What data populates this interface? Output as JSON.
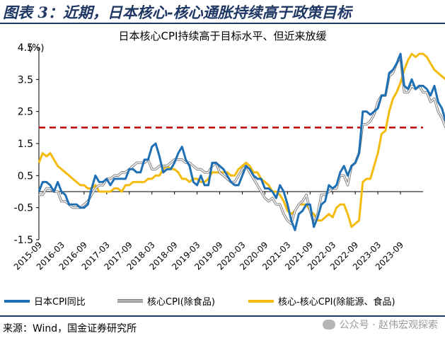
{
  "figure_title": "图表 3：近期，日本核心-核心通胀持续高于政策目标",
  "source": "来源：Wind，国金证券研究所",
  "watermark": "公众号 · 赵伟宏观探索",
  "colors": {
    "headline": "#1f6fb4",
    "core": "#b0b0b0",
    "core_core": "#f4bb0d",
    "target": "#c00000",
    "brand": "#1f3864"
  },
  "chart_data": {
    "type": "line",
    "title": "日本核心CPI持续高于目标水平、但近来放缓",
    "unit_label": "(%)",
    "ylim": [
      -1.5,
      4.5
    ],
    "yticks": [
      "4.5",
      "3.5",
      "2.5",
      "1.5",
      "0.5",
      "-0.5",
      "-1.5"
    ],
    "ytick_values": [
      4.5,
      3.5,
      2.5,
      1.5,
      0.5,
      -0.5,
      -1.5
    ],
    "xticks": [
      "2015-09",
      "2016-03",
      "2016-09",
      "2017-03",
      "2017-09",
      "2018-03",
      "2018-09",
      "2019-03",
      "2019-09",
      "2020-03",
      "2020-09",
      "2021-03",
      "2021-09",
      "2022-03",
      "2022-09",
      "2023-03",
      "2023-09"
    ],
    "x_start": "2015-09",
    "x_end": "2024-03",
    "target_line": 2.0,
    "series": [
      {
        "name": "日本CPI同比",
        "key": "headline",
        "values": [
          0.0,
          0.3,
          0.3,
          0.2,
          0.0,
          0.3,
          0.0,
          -0.1,
          -0.4,
          -0.4,
          -0.4,
          -0.5,
          -0.5,
          -0.4,
          0.1,
          0.5,
          0.3,
          0.3,
          0.4,
          0.2,
          0.4,
          0.4,
          0.4,
          0.4,
          0.7,
          0.7,
          0.6,
          0.6,
          1.0,
          1.0,
          1.4,
          1.5,
          1.1,
          0.6,
          0.7,
          0.7,
          0.9,
          1.2,
          1.4,
          1.0,
          0.8,
          0.3,
          0.2,
          0.5,
          0.2,
          0.2,
          0.9,
          0.9,
          0.8,
          0.7,
          0.5,
          0.3,
          0.2,
          0.2,
          0.5,
          0.8,
          0.7,
          0.5,
          0.4,
          0.4,
          0.1,
          0.1,
          0.0,
          -0.2,
          0.2,
          0.0,
          -0.4,
          -0.9,
          -1.2,
          -0.7,
          -0.6,
          -0.4,
          -0.4,
          -1.1,
          -0.8,
          -0.4,
          -0.3,
          0.2,
          0.1,
          0.2,
          0.6,
          0.8,
          0.5,
          0.8,
          0.9,
          1.2,
          2.5,
          2.5,
          2.4,
          2.5,
          2.6,
          3.0,
          3.0,
          3.7,
          3.8,
          4.0,
          4.3,
          3.3,
          3.2,
          3.5,
          3.2,
          3.3,
          3.3,
          3.2,
          3.0,
          3.3,
          2.8,
          2.6,
          2.2
        ]
      },
      {
        "name": "核心CPI(除食品)",
        "key": "core",
        "values": [
          -0.1,
          -0.1,
          0.1,
          0.1,
          0.0,
          0.0,
          -0.3,
          -0.3,
          -0.4,
          -0.5,
          -0.5,
          -0.5,
          -0.4,
          -0.3,
          -0.1,
          0.1,
          0.2,
          0.2,
          0.4,
          0.4,
          0.5,
          0.5,
          0.6,
          0.6,
          0.7,
          0.8,
          0.9,
          0.9,
          0.9,
          1.0,
          0.7,
          0.7,
          0.8,
          0.8,
          0.8,
          0.9,
          1.0,
          1.0,
          1.0,
          0.9,
          0.9,
          0.8,
          0.7,
          0.7,
          0.6,
          0.6,
          0.8,
          0.9,
          0.6,
          0.5,
          0.4,
          0.3,
          0.3,
          0.5,
          0.7,
          0.8,
          0.6,
          0.4,
          0.2,
          0.0,
          -0.2,
          -0.3,
          -0.2,
          -0.4,
          -0.4,
          -0.7,
          -0.9,
          -1.0,
          -0.6,
          -0.4,
          -0.3,
          -0.1,
          -0.6,
          -1.0,
          -0.7,
          -0.1,
          -0.1,
          0.0,
          0.1,
          0.1,
          0.5,
          0.5,
          0.2,
          0.8,
          0.9,
          1.2,
          2.1,
          2.1,
          2.2,
          2.4,
          2.8,
          3.0,
          3.0,
          3.6,
          3.7,
          4.0,
          4.2,
          3.1,
          3.1,
          3.3,
          3.2,
          3.3,
          3.1,
          3.1,
          2.8,
          2.9,
          2.5,
          2.3,
          2.0
        ]
      },
      {
        "name": "核心-核心CPI(除能源、食品)",
        "key": "core_core",
        "values": [
          0.9,
          1.2,
          1.1,
          1.2,
          1.0,
          0.8,
          0.7,
          0.6,
          0.5,
          0.4,
          0.3,
          0.2,
          0.2,
          0.1,
          0.1,
          0.2,
          0.0,
          0.0,
          0.0,
          0.0,
          0.1,
          0.1,
          0.0,
          0.2,
          0.2,
          0.3,
          0.3,
          0.3,
          0.3,
          0.4,
          0.4,
          0.5,
          0.5,
          0.7,
          0.8,
          0.7,
          0.7,
          0.6,
          0.4,
          0.4,
          0.3,
          0.4,
          0.4,
          0.3,
          0.3,
          0.4,
          0.6,
          0.6,
          0.6,
          0.6,
          0.6,
          0.5,
          0.5,
          0.7,
          0.8,
          0.9,
          0.8,
          0.6,
          0.6,
          0.4,
          0.3,
          0.2,
          0.0,
          0.0,
          -0.1,
          -0.3,
          -0.6,
          -0.7,
          -0.6,
          -0.4,
          -0.4,
          -0.4,
          -0.6,
          -0.7,
          -0.9,
          -0.9,
          -0.8,
          -0.7,
          -0.8,
          -0.5,
          -0.4,
          -0.4,
          -0.7,
          -1.1,
          -1.0,
          -0.9,
          0.3,
          0.4,
          0.4,
          0.8,
          1.2,
          1.8,
          1.9,
          2.5,
          2.9,
          3.1,
          3.4,
          3.8,
          4.1,
          4.3,
          4.2,
          4.3,
          4.3,
          4.2,
          4.0,
          3.8,
          3.7,
          3.6,
          3.5
        ]
      }
    ]
  }
}
